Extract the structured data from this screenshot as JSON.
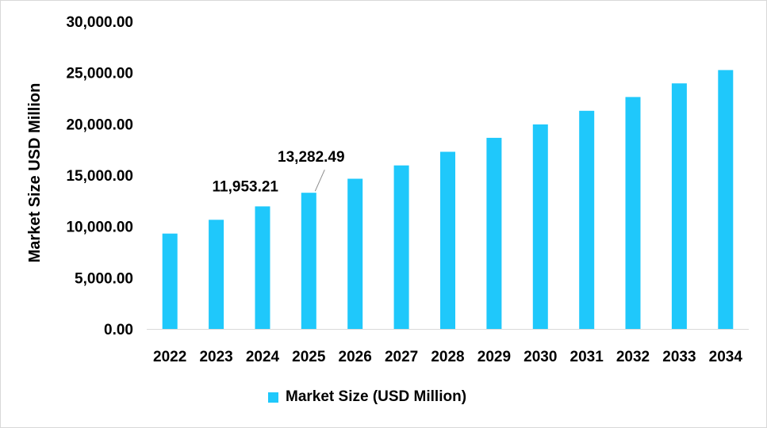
{
  "chart_data": {
    "type": "bar",
    "categories": [
      "2022",
      "2023",
      "2024",
      "2025",
      "2026",
      "2027",
      "2028",
      "2029",
      "2030",
      "2031",
      "2032",
      "2033",
      "2034"
    ],
    "series": [
      {
        "name": "Market Size (USD Million)",
        "values": [
          9300,
          10650,
          11953.21,
          13282.49,
          14650,
          15950,
          17280,
          18640,
          19950,
          21280,
          22620,
          23950,
          25250
        ],
        "color": "#1fc8fb"
      }
    ],
    "ylabel": "Market Size USD Million",
    "xlabel": "",
    "ylim": [
      0,
      30000
    ],
    "yticks": [
      0,
      5000,
      10000,
      15000,
      20000,
      25000,
      30000
    ],
    "ytick_labels": [
      "0.00",
      "5,000.00",
      "10,000.00",
      "15,000.00",
      "20,000.00",
      "25,000.00",
      "30,000.00"
    ],
    "data_labels": [
      {
        "category": "2024",
        "text": "11,953.21"
      },
      {
        "category": "2025",
        "text": "13,282.49"
      }
    ],
    "grid": false,
    "legend_position": "bottom"
  }
}
